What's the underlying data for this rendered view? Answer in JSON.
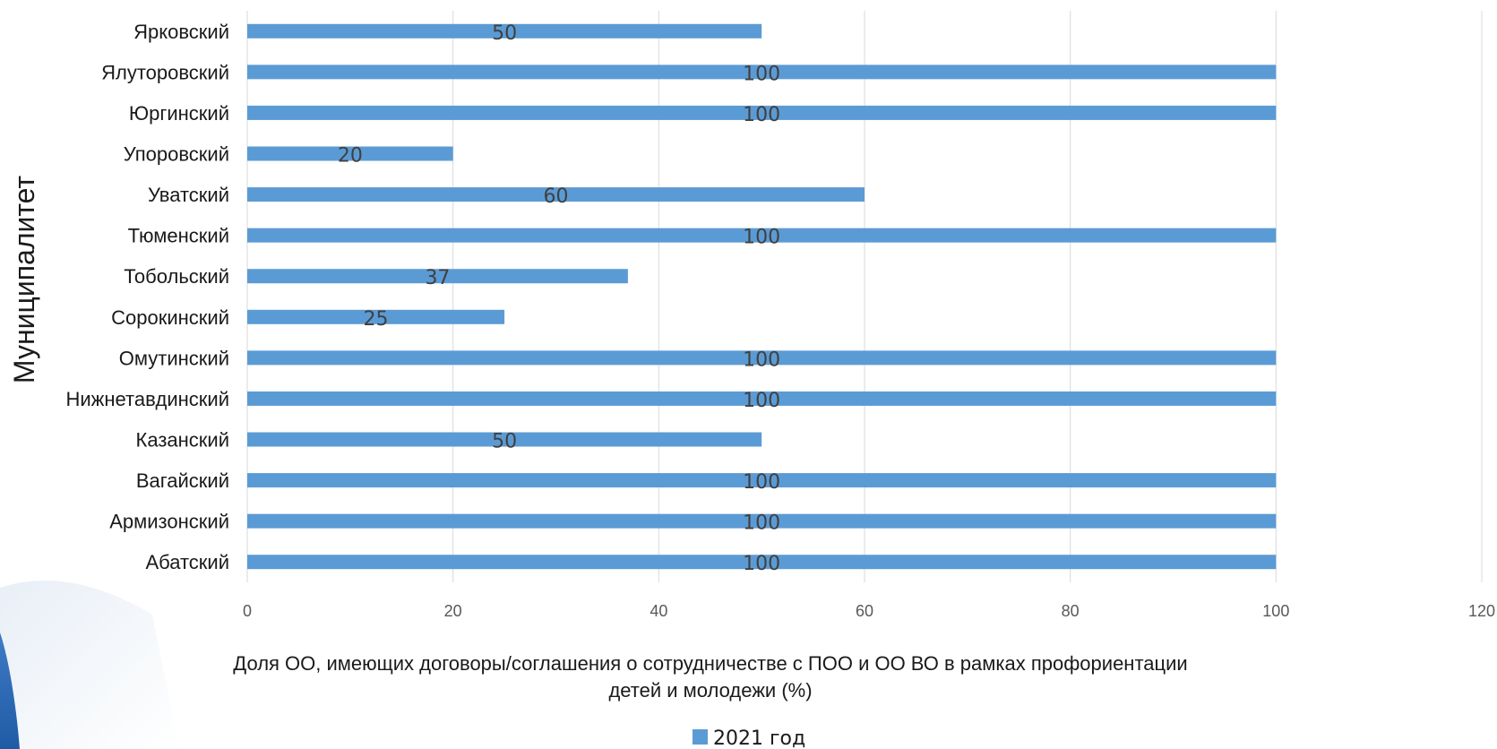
{
  "chart_data": {
    "type": "bar",
    "orientation": "horizontal",
    "categories": [
      "Абатский",
      "Армизонский",
      "Вагайский",
      "Казанский",
      "Нижнетавдинский",
      "Омутинский",
      "Сорокинский",
      "Тобольский",
      "Тюменский",
      "Уватский",
      "Упоровский",
      "Юргинский",
      "Ялуторовский",
      "Ярковский"
    ],
    "series": [
      {
        "name": "2021 год",
        "values": [
          100,
          100,
          100,
          50,
          100,
          100,
          25,
          37,
          100,
          60,
          20,
          100,
          100,
          50
        ]
      }
    ],
    "xlabel_lines": [
      "Доля ОО, имеющих договоры/соглашения о сотрудничестве с ПОО и ОО ВО в рамках профориентации",
      "детей и молодежи (%)"
    ],
    "ylabel": "Муниципалитет",
    "xlim": [
      0,
      120
    ],
    "xticks": [
      0,
      20,
      40,
      60,
      80,
      100,
      120
    ],
    "grid": "vertical",
    "legend_position": "bottom",
    "data_labels": true
  },
  "colors": {
    "bar": "#5b9bd5",
    "grid": "#d9d9d9"
  }
}
